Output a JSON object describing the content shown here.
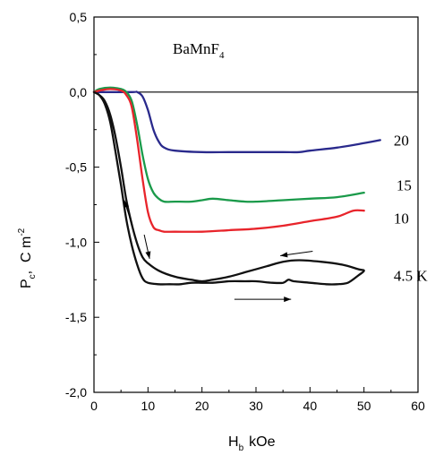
{
  "chart_data": {
    "type": "line",
    "title": "",
    "annotation": {
      "text": "BaMnF",
      "sub": "4"
    },
    "xlabel": {
      "main": "H",
      "sub": "b",
      "unit": "kOe"
    },
    "ylabel": {
      "main": "P",
      "sub": "c",
      "rest": ",  C m",
      "sup": "-2"
    },
    "xlim": [
      0,
      60
    ],
    "ylim": [
      -2.0,
      0.5
    ],
    "xticks": [
      0,
      10,
      20,
      30,
      40,
      50,
      60
    ],
    "xtick_labels": [
      "0",
      "10",
      "20",
      "30",
      "40",
      "50",
      "60"
    ],
    "yticks": [
      0.5,
      0.0,
      -0.5,
      -1.0,
      -1.5,
      -2.0
    ],
    "ytick_labels": [
      "0,5",
      "0,0",
      "-0,5",
      "-1,0",
      "-1,5",
      "-2,0"
    ],
    "zero_line": true,
    "grid": false,
    "legend": "none",
    "series": [
      {
        "name": "20",
        "color": "#2a2a8c",
        "x": [
          0,
          7,
          8,
          9,
          10,
          11,
          12,
          13,
          15,
          20,
          25,
          30,
          35,
          38,
          40,
          45,
          50,
          53
        ],
        "y": [
          0,
          0,
          0,
          -0.03,
          -0.12,
          -0.25,
          -0.33,
          -0.37,
          -0.39,
          -0.4,
          -0.4,
          -0.4,
          -0.4,
          -0.4,
          -0.39,
          -0.37,
          -0.34,
          -0.32
        ]
      },
      {
        "name": "15",
        "color": "#1a9a4a",
        "x": [
          0,
          1,
          3,
          5,
          6,
          7,
          8,
          9,
          10,
          11,
          12,
          13,
          15,
          18,
          20,
          22,
          25,
          28,
          30,
          35,
          40,
          45,
          50
        ],
        "y": [
          0,
          0.02,
          0.03,
          0.02,
          0,
          -0.06,
          -0.22,
          -0.42,
          -0.58,
          -0.67,
          -0.71,
          -0.73,
          -0.73,
          -0.73,
          -0.72,
          -0.71,
          -0.72,
          -0.73,
          -0.73,
          -0.72,
          -0.71,
          -0.7,
          -0.67
        ]
      },
      {
        "name": "10",
        "color": "#e8242b",
        "x": [
          0,
          1,
          3,
          5,
          6,
          7,
          8,
          9,
          10,
          11,
          12,
          13,
          15,
          20,
          25,
          30,
          35,
          40,
          45,
          48,
          50
        ],
        "y": [
          0,
          0.01,
          0.02,
          0.01,
          -0.02,
          -0.1,
          -0.32,
          -0.58,
          -0.8,
          -0.9,
          -0.92,
          -0.93,
          -0.93,
          -0.93,
          -0.92,
          -0.91,
          -0.89,
          -0.86,
          -0.83,
          -0.79,
          -0.79
        ]
      },
      {
        "name": "4.5 K",
        "color": "#111111",
        "x": [
          0,
          1,
          2,
          3,
          4,
          5,
          6,
          7,
          8,
          9,
          10,
          12,
          14,
          16,
          18,
          20,
          22,
          25,
          28,
          30,
          33,
          35,
          36,
          37,
          40,
          43,
          45,
          47,
          49,
          50,
          49,
          46,
          42,
          38,
          35,
          32,
          28,
          25,
          22,
          20,
          18,
          15,
          12,
          10,
          9,
          8,
          7,
          6,
          5,
          4,
          3,
          2,
          1,
          0
        ],
        "y": [
          0,
          -0.02,
          -0.08,
          -0.2,
          -0.4,
          -0.62,
          -0.85,
          -1.02,
          -1.15,
          -1.24,
          -1.27,
          -1.28,
          -1.28,
          -1.28,
          -1.27,
          -1.27,
          -1.27,
          -1.26,
          -1.26,
          -1.26,
          -1.27,
          -1.27,
          -1.25,
          -1.26,
          -1.27,
          -1.28,
          -1.28,
          -1.27,
          -1.22,
          -1.19,
          -1.18,
          -1.15,
          -1.13,
          -1.12,
          -1.13,
          -1.16,
          -1.2,
          -1.23,
          -1.25,
          -1.26,
          -1.25,
          -1.23,
          -1.19,
          -1.14,
          -1.1,
          -1.01,
          -0.88,
          -0.72,
          -0.5,
          -0.3,
          -0.15,
          -0.06,
          -0.02,
          0
        ]
      }
    ],
    "series_labels": [
      {
        "text": "20",
        "series": "20",
        "x": 55.5,
        "y": -0.32
      },
      {
        "text": "15",
        "series": "15",
        "x": 56,
        "y": -0.62
      },
      {
        "text": "10",
        "series": "10",
        "x": 55.5,
        "y": -0.84
      },
      {
        "text": "4.5 K",
        "series": "4.5 K",
        "x": 55.5,
        "y": -1.22
      }
    ],
    "arrows": [
      {
        "from": [
          7.0,
          -0.88
        ],
        "to": [
          5.6,
          -0.72
        ]
      },
      {
        "from": [
          9.3,
          -0.95
        ],
        "to": [
          10.3,
          -1.11
        ]
      },
      {
        "from": [
          40.5,
          -1.06
        ],
        "to": [
          34.5,
          -1.09
        ]
      },
      {
        "from": [
          26,
          -1.38
        ],
        "to": [
          36.5,
          -1.38
        ]
      }
    ]
  }
}
